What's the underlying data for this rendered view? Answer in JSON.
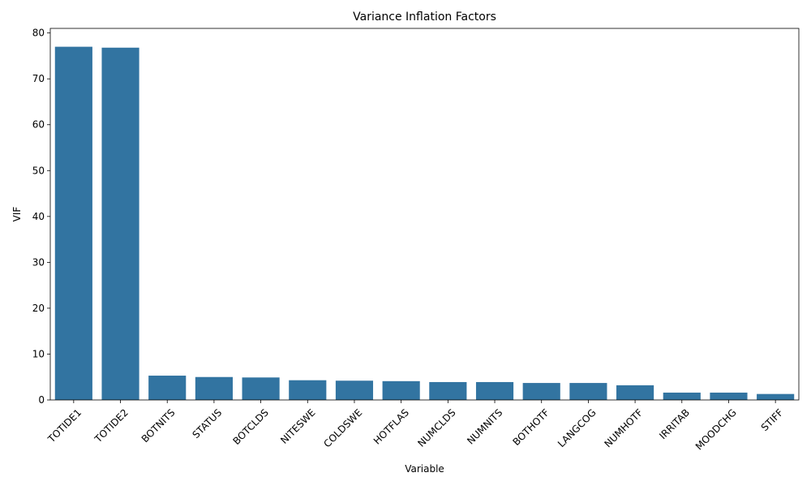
{
  "chart_data": {
    "type": "bar",
    "title": "Variance Inflation Factors",
    "xlabel": "Variable",
    "ylabel": "VIF",
    "categories": [
      "TOTIDE1",
      "TOTIDE2",
      "BOTNITS",
      "STATUS",
      "BOTCLDS",
      "NITESWE",
      "COLDSWE",
      "HOTFLAS",
      "NUMCLDS",
      "NUMNITS",
      "BOTHOTF",
      "LANGCOG",
      "NUMHOTF",
      "IRRITAB",
      "MOODCHG",
      "STIFF"
    ],
    "values": [
      77.0,
      76.8,
      5.3,
      5.0,
      4.9,
      4.3,
      4.2,
      4.1,
      3.9,
      3.9,
      3.7,
      3.7,
      3.2,
      1.6,
      1.6,
      1.3
    ],
    "ylim": [
      0,
      81
    ],
    "yticks": [
      0,
      10,
      20,
      30,
      40,
      50,
      60,
      70,
      80
    ],
    "xtick_rotation": 45,
    "bar_color": "#3274a1",
    "grid": false,
    "legend": "none"
  }
}
